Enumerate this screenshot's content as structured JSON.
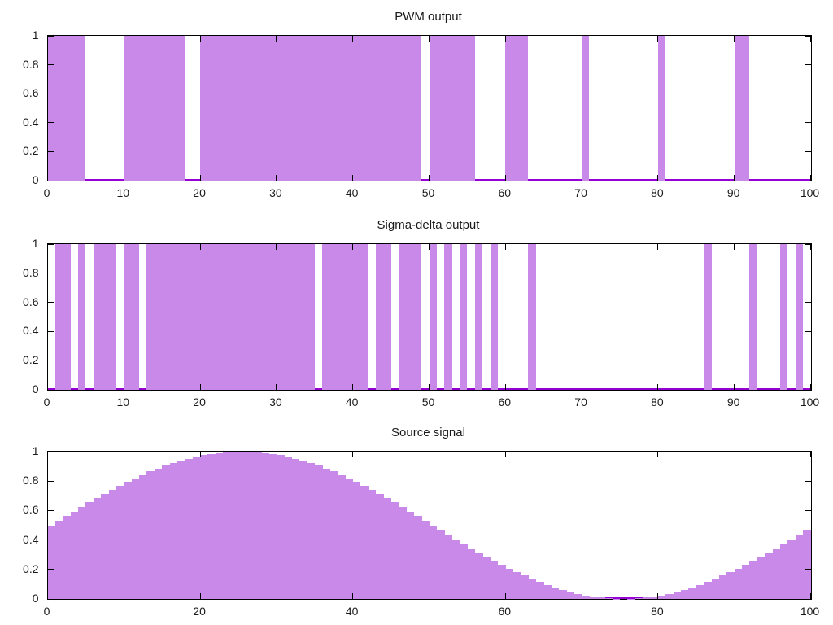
{
  "figure": {
    "background": "#ffffff",
    "fill_color": "#c989e8",
    "line_color": "#9400d3",
    "frame_color": "#000000",
    "text_color": "#1a1a1a"
  },
  "chart_data": [
    {
      "type": "area",
      "title": "PWM output",
      "xlim": [
        0,
        100
      ],
      "ylim": [
        0,
        1
      ],
      "x_ticks": [
        0,
        10,
        20,
        30,
        40,
        50,
        60,
        70,
        80,
        90,
        100
      ],
      "y_ticks": [
        0,
        0.2,
        0.4,
        0.6,
        0.8,
        1
      ],
      "y_tick_labels": [
        "0",
        "0.2",
        "0.4",
        "0.6",
        "0.8",
        "1"
      ],
      "grid": false,
      "legend": "none",
      "signal": "binary pulses, value 1 inside intervals, 0 elsewhere",
      "pulses": [
        [
          0,
          5
        ],
        [
          10,
          18
        ],
        [
          20,
          49
        ],
        [
          50,
          56
        ],
        [
          60,
          63
        ],
        [
          70,
          71
        ],
        [
          80,
          81
        ],
        [
          90,
          92
        ]
      ]
    },
    {
      "type": "area",
      "title": "Sigma-delta output",
      "xlim": [
        0,
        100
      ],
      "ylim": [
        0,
        1
      ],
      "x_ticks": [
        0,
        10,
        20,
        30,
        40,
        50,
        60,
        70,
        80,
        90,
        100
      ],
      "y_ticks": [
        0,
        0.2,
        0.4,
        0.6,
        0.8,
        1
      ],
      "y_tick_labels": [
        "0",
        "0.2",
        "0.4",
        "0.6",
        "0.8",
        "1"
      ],
      "grid": false,
      "legend": "none",
      "signal": "binary pulses, value 1 inside intervals, 0 elsewhere",
      "pulses": [
        [
          1,
          3
        ],
        [
          4,
          5
        ],
        [
          6,
          9
        ],
        [
          10,
          12
        ],
        [
          13,
          35
        ],
        [
          36,
          42
        ],
        [
          43,
          45
        ],
        [
          46,
          49
        ],
        [
          50,
          51
        ],
        [
          52,
          53
        ],
        [
          54,
          55
        ],
        [
          56,
          57
        ],
        [
          58,
          59
        ],
        [
          63,
          64
        ],
        [
          86,
          87
        ],
        [
          92,
          93
        ],
        [
          96,
          97
        ],
        [
          98,
          99
        ]
      ]
    },
    {
      "type": "bar",
      "title": "Source signal",
      "xlim": [
        0,
        100
      ],
      "ylim": [
        0,
        1
      ],
      "x_ticks": [
        0,
        20,
        40,
        60,
        80,
        100
      ],
      "y_ticks": [
        0,
        0.2,
        0.4,
        0.6,
        0.8,
        1
      ],
      "y_tick_labels": [
        "0",
        "0.2",
        "0.4",
        "0.6",
        "0.8",
        "1"
      ],
      "grid": false,
      "legend": "none",
      "signal": "staircase of unit-width samples of 0.5+0.5*sin(2*pi*x/100)",
      "sample_step": 1,
      "values": [
        0.5,
        0.531,
        0.563,
        0.594,
        0.624,
        0.655,
        0.684,
        0.713,
        0.741,
        0.768,
        0.794,
        0.819,
        0.842,
        0.865,
        0.885,
        0.905,
        0.922,
        0.938,
        0.952,
        0.965,
        0.976,
        0.984,
        0.991,
        0.996,
        0.999,
        1.0,
        0.999,
        0.996,
        0.991,
        0.984,
        0.976,
        0.965,
        0.952,
        0.938,
        0.922,
        0.905,
        0.885,
        0.865,
        0.842,
        0.819,
        0.794,
        0.768,
        0.741,
        0.713,
        0.684,
        0.655,
        0.624,
        0.594,
        0.563,
        0.531,
        0.5,
        0.469,
        0.437,
        0.406,
        0.376,
        0.345,
        0.316,
        0.287,
        0.259,
        0.232,
        0.206,
        0.181,
        0.158,
        0.135,
        0.115,
        0.095,
        0.078,
        0.062,
        0.048,
        0.035,
        0.024,
        0.016,
        0.009,
        0.004,
        0.001,
        0.0,
        0.001,
        0.004,
        0.009,
        0.016,
        0.024,
        0.035,
        0.048,
        0.062,
        0.078,
        0.095,
        0.115,
        0.135,
        0.158,
        0.181,
        0.206,
        0.232,
        0.259,
        0.287,
        0.316,
        0.345,
        0.376,
        0.406,
        0.437,
        0.469
      ]
    }
  ]
}
